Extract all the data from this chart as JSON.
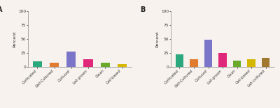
{
  "chart_A": {
    "categories": [
      "Cultivated",
      "Cell-Cultured",
      "Cultured",
      "Lab-grown",
      "Clean",
      "Cell-based"
    ],
    "values": [
      10,
      8,
      28,
      14,
      7,
      5
    ],
    "colors": [
      "#2ca87f",
      "#e07b30",
      "#7b75c9",
      "#e0287a",
      "#6aaa2a",
      "#d4b800"
    ]
  },
  "chart_B": {
    "categories": [
      "Cultivated",
      "Cell-Cultured",
      "Cultured",
      "Lab-grown",
      "Clean",
      "Cell-based",
      "Lab-cultured"
    ],
    "values": [
      22,
      14,
      49,
      25,
      11,
      14,
      16
    ],
    "colors": [
      "#2ca87f",
      "#e07b30",
      "#7b75c9",
      "#e0287a",
      "#6aaa2a",
      "#d4b800",
      "#a07830"
    ]
  },
  "ylabel": "Percent",
  "ylim": [
    0,
    100
  ],
  "yticks": [
    0,
    25,
    50,
    75,
    100
  ],
  "label_A": "A",
  "label_B": "B",
  "bg_color": "#f7f2ee"
}
